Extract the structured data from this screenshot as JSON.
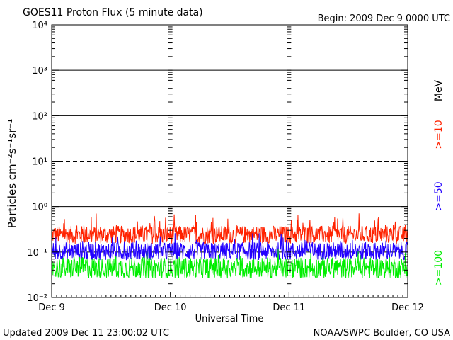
{
  "chart_data": {
    "type": "line",
    "title": "GOES11 Proton Flux (5 minute data)",
    "begin_label": "Begin: 2009 Dec 9 0000 UTC",
    "xlabel": "Universal Time",
    "ylabel": "Particles cm⁻²s⁻¹sr⁻¹",
    "yscale": "log",
    "ylim": [
      0.01,
      10000
    ],
    "xlim": [
      0,
      3
    ],
    "x_ticks": [
      {
        "value": 0,
        "label": "Dec 9"
      },
      {
        "value": 1,
        "label": "Dec 10"
      },
      {
        "value": 2,
        "label": "Dec 11"
      },
      {
        "value": 3,
        "label": "Dec 12"
      }
    ],
    "y_ticks": [
      {
        "value": 0.01,
        "label": "10⁻²"
      },
      {
        "value": 0.1,
        "label": "10⁻¹"
      },
      {
        "value": 1,
        "label": "10⁰"
      },
      {
        "value": 10,
        "label": "10¹"
      },
      {
        "value": 100,
        "label": "10²"
      },
      {
        "value": 1000,
        "label": "10³"
      },
      {
        "value": 10000,
        "label": "10⁴"
      }
    ],
    "reference_lines": [
      {
        "value": 1000,
        "style": "solid"
      },
      {
        "value": 100,
        "style": "solid"
      },
      {
        "value": 10,
        "style": "dashed"
      },
      {
        "value": 1,
        "style": "solid"
      },
      {
        "value": 0.1,
        "style": "dashed"
      }
    ],
    "units_label": "MeV",
    "series": [
      {
        "name": ">=10",
        "color": "#ff2200",
        "base": 0.24,
        "spread": 0.22,
        "spike_prob": 0.04,
        "spike_mult": 1.9
      },
      {
        "name": ">=50",
        "color": "#2200ff",
        "base": 0.105,
        "spread": 0.22,
        "spike_prob": 0.04,
        "spike_mult": 1.6
      },
      {
        "name": ">=100",
        "color": "#00ee00",
        "base": 0.045,
        "spread": 0.26,
        "spike_prob": 0.03,
        "spike_mult": 1.6
      }
    ],
    "points_per_series": 864
  },
  "footer": {
    "updated": "Updated 2009 Dec 11 23:00:02 UTC",
    "source": "NOAA/SWPC Boulder, CO USA"
  }
}
